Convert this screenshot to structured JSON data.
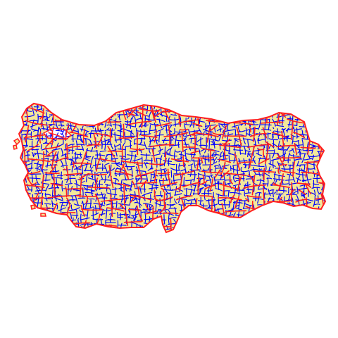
{
  "map": {
    "colors": {
      "background": "#ffffff",
      "land_fill": "#f3e89a",
      "province_border": "#ff1f1f",
      "district_border": "#0000ff",
      "sea_hole_fill": "#ffffff"
    }
  }
}
